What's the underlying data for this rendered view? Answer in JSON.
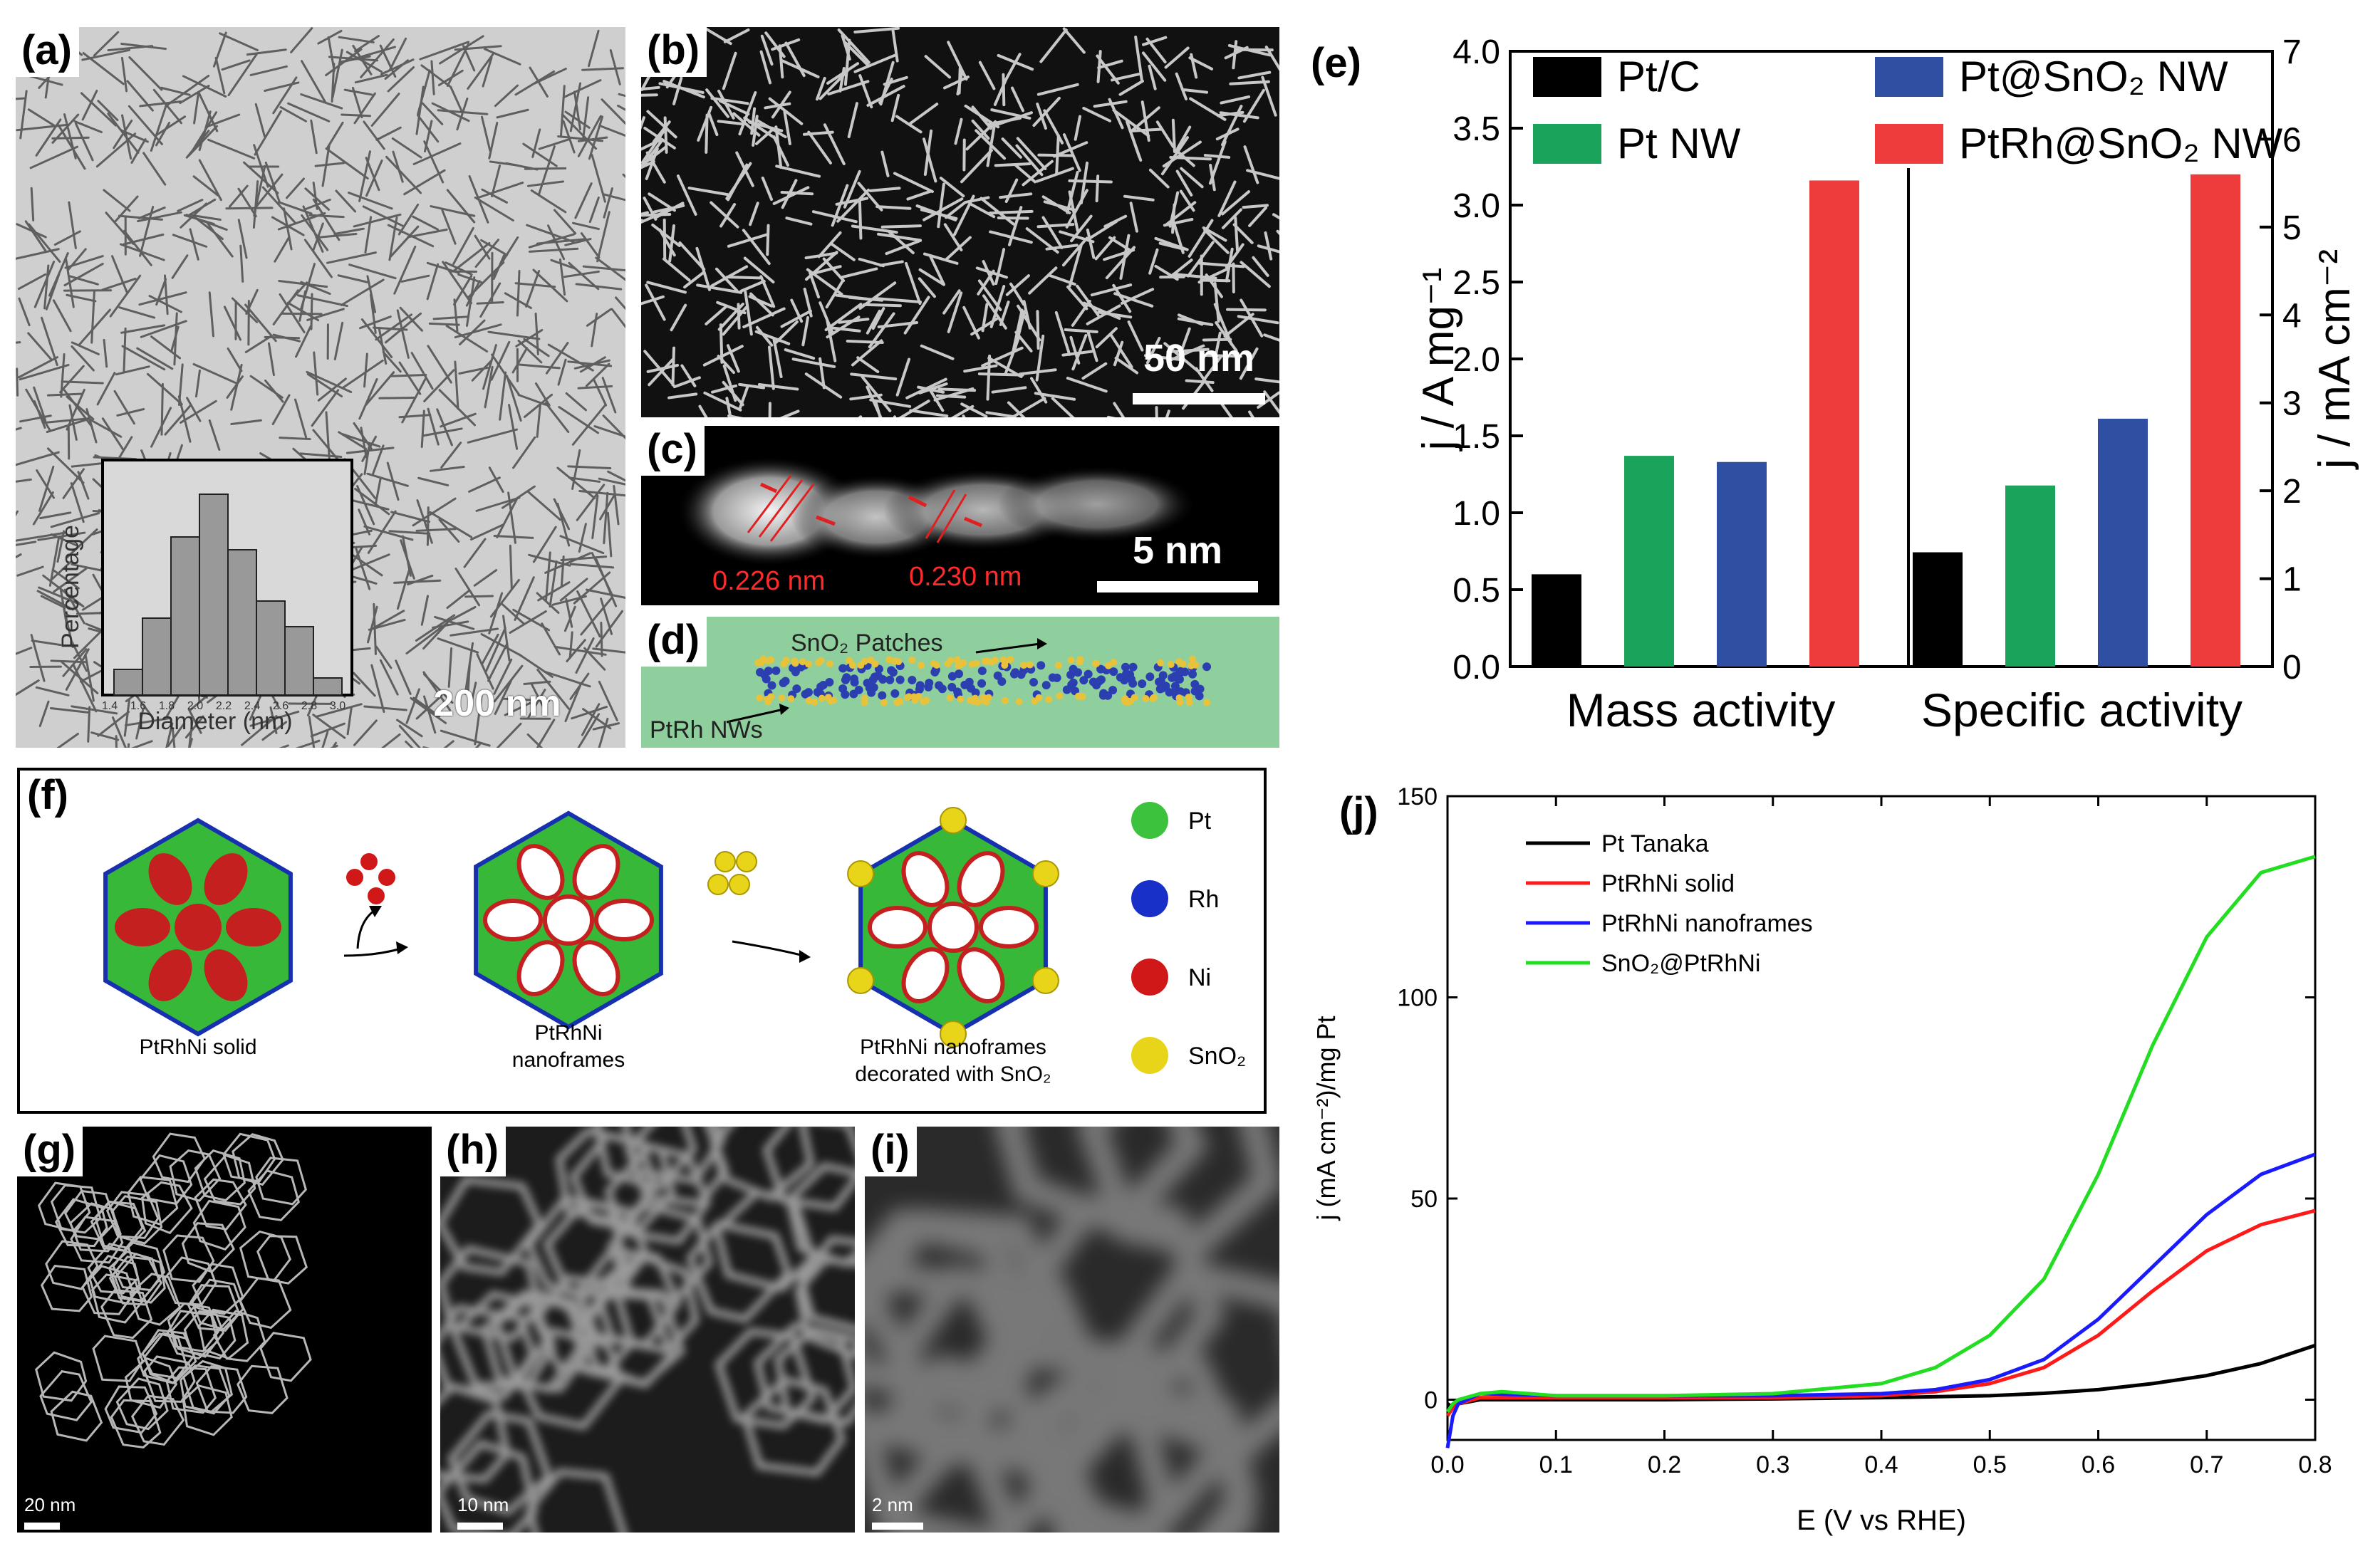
{
  "panels": {
    "a": {
      "tag": "(a)",
      "scale": "200 nm",
      "inset_ylabel": "Percentage",
      "inset_xlabel": "Diameter (nm)",
      "inset_ticks": [
        "1.4",
        "1.6",
        "1.8",
        "2.0",
        "2.2",
        "2.4",
        "2.6",
        "2.8",
        "3.0"
      ]
    },
    "b": {
      "tag": "(b)",
      "scale": "50 nm"
    },
    "c": {
      "tag": "(c)",
      "scale": "5 nm",
      "d1": "0.226 nm",
      "d2": "0.230 nm"
    },
    "d": {
      "tag": "(d)",
      "patches_label": "SnO₂ Patches",
      "nw_label": "PtRh NWs"
    },
    "e": {
      "tag": "(e)"
    },
    "f": {
      "tag": "(f)",
      "label_solid": "PtRhNi solid",
      "label_frames_1": "PtRhNi",
      "label_frames_2": "nanoframes",
      "label_deco_1": "PtRhNi nanoframes",
      "label_deco_2": "decorated with SnO₂",
      "legend": [
        {
          "name": "Pt",
          "color": "#3cc23c"
        },
        {
          "name": "Rh",
          "color": "#1830c8"
        },
        {
          "name": "Ni",
          "color": "#d01818"
        },
        {
          "name": "SnO₂",
          "color": "#e8d418"
        }
      ]
    },
    "g": {
      "tag": "(g)",
      "scale": "20 nm"
    },
    "h": {
      "tag": "(h)",
      "scale": "10 nm"
    },
    "i": {
      "tag": "(i)",
      "scale": "2 nm"
    },
    "j": {
      "tag": "(j)"
    }
  },
  "chart_data": [
    {
      "id": "e",
      "type": "bar",
      "groups": [
        "Mass activity",
        "Specific activity"
      ],
      "ylabel_left": "j / A mg⁻¹",
      "ylabel_right": "j / mA cm⁻²",
      "ylim_left": [
        0,
        4.0
      ],
      "ylim_right": [
        0,
        7
      ],
      "yticks_left": [
        "0.0",
        "0.5",
        "1.0",
        "1.5",
        "2.0",
        "2.5",
        "3.0",
        "3.5",
        "4.0"
      ],
      "yticks_right": [
        "0",
        "1",
        "2",
        "3",
        "4",
        "5",
        "6",
        "7"
      ],
      "series": [
        {
          "name": "Pt/C",
          "color": "#000000",
          "values": [
            0.6,
            1.3
          ]
        },
        {
          "name": "Pt NW",
          "color": "#1aa35a",
          "values": [
            1.37,
            2.06
          ]
        },
        {
          "name": "Pt@SnO₂ NW",
          "color": "#2f4fa2",
          "values": [
            1.33,
            2.82
          ]
        },
        {
          "name": "PtRh@SnO₂ NW",
          "color": "#ee3b3b",
          "values": [
            3.16,
            5.6
          ]
        }
      ],
      "legend": "top"
    },
    {
      "id": "j",
      "type": "line",
      "xlabel": "E (V vs RHE)",
      "ylabel": "j (mA cm⁻²)/mg Pt",
      "xlim": [
        0,
        0.8
      ],
      "ylim": [
        -10,
        150
      ],
      "xticks": [
        "0.0",
        "0.1",
        "0.2",
        "0.3",
        "0.4",
        "0.5",
        "0.6",
        "0.7",
        "0.8"
      ],
      "yticks": [
        "0",
        "50",
        "100",
        "150"
      ],
      "legend": "top-left",
      "series": [
        {
          "name": "Pt Tanaka",
          "color": "#000000",
          "x": [
            0,
            0.005,
            0.01,
            0.03,
            0.1,
            0.2,
            0.3,
            0.4,
            0.5,
            0.55,
            0.6,
            0.65,
            0.7,
            0.75,
            0.8
          ],
          "y": [
            -1,
            -2,
            -1,
            0,
            0,
            0,
            0.2,
            0.5,
            1,
            1.6,
            2.5,
            4,
            6,
            9,
            13.5
          ]
        },
        {
          "name": "PtRhNi solid",
          "color": "#ff1a1a",
          "x": [
            0,
            0.005,
            0.01,
            0.03,
            0.1,
            0.2,
            0.3,
            0.4,
            0.45,
            0.5,
            0.55,
            0.6,
            0.65,
            0.7,
            0.75,
            0.8
          ],
          "y": [
            -4,
            -2,
            -1,
            0.5,
            0.5,
            0.5,
            0.5,
            1,
            2,
            4,
            8,
            16,
            27,
            37,
            43.5,
            47
          ]
        },
        {
          "name": "PtRhNi nanoframes",
          "color": "#1a1aff",
          "x": [
            0,
            0.005,
            0.01,
            0.03,
            0.1,
            0.2,
            0.3,
            0.4,
            0.45,
            0.5,
            0.55,
            0.6,
            0.65,
            0.7,
            0.75,
            0.8
          ],
          "y": [
            -12,
            -4,
            -1,
            1.5,
            1,
            1,
            1,
            1.5,
            2.5,
            5,
            10,
            20,
            33,
            46,
            56,
            61
          ]
        },
        {
          "name": "SnO₂@PtRhNi",
          "color": "#22dd22",
          "x": [
            0,
            0.005,
            0.01,
            0.03,
            0.05,
            0.1,
            0.2,
            0.3,
            0.4,
            0.45,
            0.5,
            0.55,
            0.6,
            0.65,
            0.7,
            0.75,
            0.8
          ],
          "y": [
            -3,
            -1,
            0,
            1.5,
            2,
            1,
            1,
            1.5,
            4,
            8,
            16,
            30,
            56,
            88,
            115,
            131,
            135
          ]
        }
      ]
    }
  ]
}
